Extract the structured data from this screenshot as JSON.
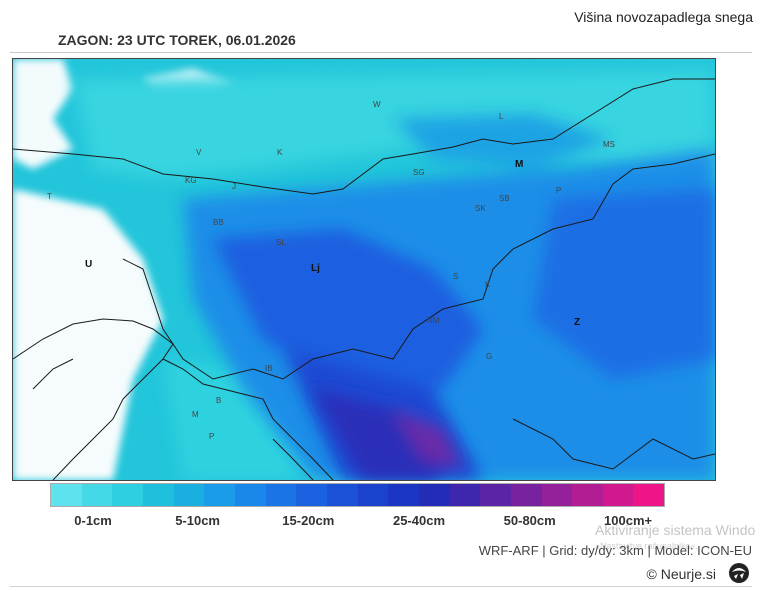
{
  "header": {
    "title": "Višina novozapadlega snega",
    "run": "ZAGON: 23 UTC  TOREK, 06.01.2026"
  },
  "map": {
    "region_labels": [
      "W",
      "L",
      "MS",
      "M",
      "SG",
      "T",
      "V",
      "K",
      "KG",
      "J",
      "P",
      "SK",
      "SB",
      "BB",
      "U",
      "Lj",
      "SL",
      "K",
      "NM",
      "Z",
      "G",
      "S",
      "IB",
      "B",
      "M",
      "P"
    ],
    "colors": {
      "low": "#2dd0de",
      "mid": "#1a82e8",
      "high": "#1232c2",
      "peak": "#6a2aa8"
    }
  },
  "legend": {
    "colors": [
      "#5ee3ee",
      "#45d9e8",
      "#2fcfe2",
      "#1fc0dc",
      "#19b0e0",
      "#1a9ce8",
      "#1a88ea",
      "#1a74e6",
      "#1a62df",
      "#1a51d6",
      "#1a42cd",
      "#1b36c2",
      "#232cb6",
      "#3f27ad",
      "#5b24a6",
      "#7822a0",
      "#94209a",
      "#b31d93",
      "#d0198e",
      "#ef1488"
    ],
    "labels": [
      "0-1cm",
      "5-10cm",
      "15-20cm",
      "25-40cm",
      "50-80cm",
      "100cm+"
    ],
    "label_offsets": [
      0.07,
      0.24,
      0.42,
      0.6,
      0.78,
      0.94
    ]
  },
  "footer": {
    "model": "WRF-ARF | Grid: dy/dy: 3km | Model: ICON-EU",
    "copyright": "© Neurje.si",
    "logo_icon": "storm-logo-icon"
  },
  "watermark": {
    "line1": "Aktiviranje sistema Windo",
    "line2": "»Nastavitve računalnika«."
  }
}
